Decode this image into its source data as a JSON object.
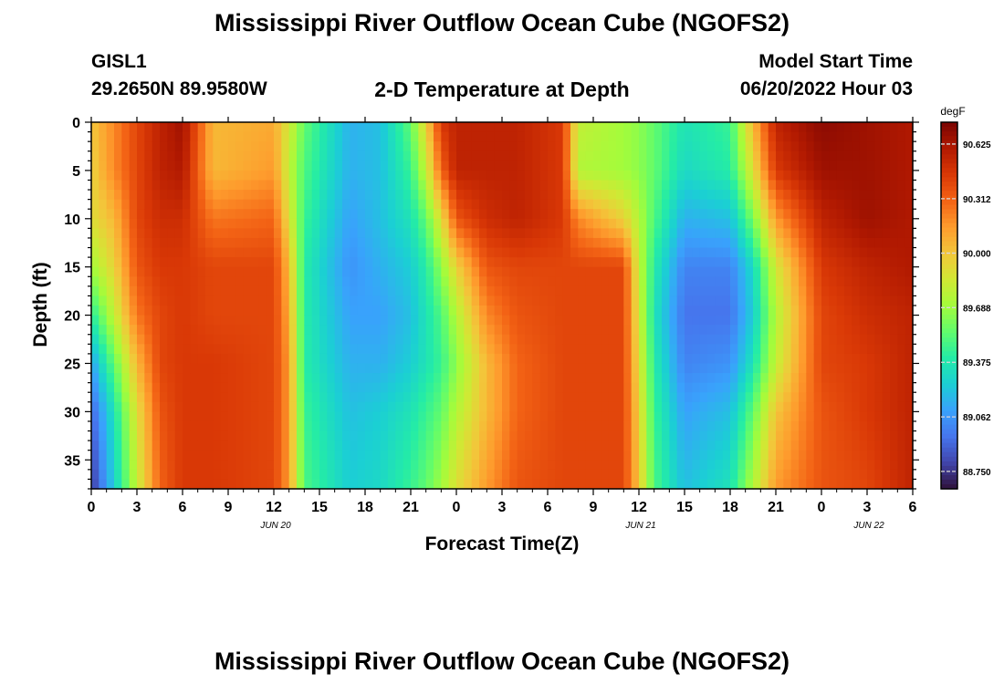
{
  "header": {
    "title": "Mississippi River Outflow Ocean Cube (NGOFS2)",
    "station_id": "GISL1",
    "station_coords": "29.2650N  89.9580W",
    "subtitle": "2-D Temperature at Depth",
    "model_label": "Model Start Time",
    "model_start": "06/20/2022 Hour 03"
  },
  "footer": {
    "title_repeat": "Mississippi River Outflow Ocean Cube (NGOFS2)"
  },
  "chart_data": {
    "type": "heatmap",
    "xlabel": "Forecast Time(Z)",
    "ylabel": "Depth (ft)",
    "y_ticks": [
      0,
      5,
      10,
      15,
      20,
      25,
      30,
      35
    ],
    "y_range": [
      0,
      38
    ],
    "y_inverted": true,
    "x_range_hours": [
      0,
      54
    ],
    "x_tick_labels": [
      "0",
      "3",
      "6",
      "9",
      "12",
      "15",
      "18",
      "21",
      "0",
      "3",
      "6",
      "9",
      "12",
      "15",
      "18",
      "21",
      "0",
      "3",
      "6"
    ],
    "x_date_labels": [
      {
        "label": "JUN 20",
        "at_tick": 4
      },
      {
        "label": "JUN 21",
        "at_tick": 12
      },
      {
        "label": "JUN 22",
        "at_tick": 17
      }
    ],
    "colorbar": {
      "unit": "degF",
      "min": 88.65,
      "max": 90.75,
      "ticks": [
        "90.625",
        "90.312",
        "90.000",
        "89.688",
        "89.375",
        "89.062",
        "88.750"
      ],
      "colors": [
        "#30123b",
        "#4145ab",
        "#4675ed",
        "#39a2fc",
        "#1bcfd4",
        "#24eca6",
        "#61fc6c",
        "#a4fc3b",
        "#d1e834",
        "#f3c63a",
        "#fe9b2d",
        "#f36315",
        "#d93806",
        "#b11901",
        "#7a0402"
      ]
    },
    "profiles_note": "temperature field (degF) by forecast hour and depth",
    "field_keyframes": [
      {
        "t": 0,
        "temps": [
          90.0,
          89.95,
          89.9,
          89.7,
          89.4,
          89.1,
          88.9,
          88.75
        ]
      },
      {
        "t": 1.5,
        "temps": [
          90.2,
          90.2,
          90.05,
          89.95,
          89.8,
          89.55,
          89.35,
          89.25
        ]
      },
      {
        "t": 3,
        "temps": [
          90.4,
          90.4,
          90.4,
          90.35,
          90.25,
          90.05,
          89.9,
          89.8
        ]
      },
      {
        "t": 4.5,
        "temps": [
          90.55,
          90.55,
          90.5,
          90.45,
          90.4,
          90.4,
          90.35,
          90.3
        ]
      },
      {
        "t": 6,
        "temps": [
          90.65,
          90.6,
          90.5,
          90.45,
          90.45,
          90.45,
          90.45,
          90.45
        ]
      },
      {
        "t": 8,
        "temps": [
          90.05,
          90.05,
          90.25,
          90.4,
          90.4,
          90.45,
          90.45,
          90.45
        ]
      },
      {
        "t": 12,
        "temps": [
          90.1,
          90.15,
          90.3,
          90.4,
          90.4,
          90.4,
          90.4,
          90.4
        ]
      },
      {
        "t": 13,
        "temps": [
          89.85,
          89.8,
          89.9,
          90.05,
          90.1,
          90.15,
          90.15,
          90.15
        ]
      },
      {
        "t": 14,
        "temps": [
          89.55,
          89.5,
          89.45,
          89.4,
          89.4,
          89.4,
          89.45,
          89.5
        ]
      },
      {
        "t": 17,
        "temps": [
          89.15,
          89.15,
          89.1,
          89.05,
          89.1,
          89.15,
          89.2,
          89.25
        ]
      },
      {
        "t": 19,
        "temps": [
          89.2,
          89.2,
          89.2,
          89.15,
          89.1,
          89.15,
          89.25,
          89.3
        ]
      },
      {
        "t": 21,
        "temps": [
          89.55,
          89.45,
          89.35,
          89.25,
          89.2,
          89.25,
          89.35,
          89.45
        ]
      },
      {
        "t": 22,
        "temps": [
          89.95,
          89.8,
          89.55,
          89.4,
          89.35,
          89.35,
          89.45,
          89.55
        ]
      },
      {
        "t": 23,
        "temps": [
          90.45,
          90.3,
          89.9,
          89.65,
          89.5,
          89.45,
          89.55,
          89.7
        ]
      },
      {
        "t": 24,
        "temps": [
          90.55,
          90.55,
          90.35,
          89.95,
          89.75,
          89.65,
          89.75,
          89.9
        ]
      },
      {
        "t": 26,
        "temps": [
          90.55,
          90.55,
          90.5,
          90.35,
          90.2,
          90.05,
          90.05,
          90.15
        ]
      },
      {
        "t": 28,
        "temps": [
          90.55,
          90.55,
          90.55,
          90.4,
          90.35,
          90.3,
          90.3,
          90.35
        ]
      },
      {
        "t": 31,
        "temps": [
          90.45,
          90.45,
          90.45,
          90.4,
          90.4,
          90.4,
          90.4,
          90.4
        ]
      },
      {
        "t": 32,
        "temps": [
          89.8,
          89.75,
          90.2,
          90.4,
          90.4,
          90.4,
          90.4,
          90.4
        ]
      },
      {
        "t": 35,
        "temps": [
          89.7,
          89.7,
          89.95,
          90.4,
          90.4,
          90.4,
          90.4,
          90.4
        ]
      },
      {
        "t": 36,
        "temps": [
          89.65,
          89.65,
          89.75,
          89.8,
          89.85,
          89.9,
          89.95,
          90.0
        ]
      },
      {
        "t": 37,
        "temps": [
          89.55,
          89.55,
          89.5,
          89.4,
          89.35,
          89.4,
          89.45,
          89.5
        ]
      },
      {
        "t": 39,
        "temps": [
          89.35,
          89.3,
          89.15,
          89.0,
          88.95,
          89.0,
          89.1,
          89.2
        ]
      },
      {
        "t": 42,
        "temps": [
          89.45,
          89.4,
          89.2,
          89.0,
          88.95,
          89.05,
          89.2,
          89.35
        ]
      },
      {
        "t": 43.5,
        "temps": [
          90.05,
          89.9,
          89.6,
          89.3,
          89.25,
          89.35,
          89.55,
          89.75
        ]
      },
      {
        "t": 45,
        "temps": [
          90.55,
          90.45,
          90.15,
          89.85,
          89.75,
          89.8,
          90.0,
          90.15
        ]
      },
      {
        "t": 48,
        "temps": [
          90.7,
          90.65,
          90.55,
          90.45,
          90.4,
          90.4,
          90.35,
          90.35
        ]
      },
      {
        "t": 51,
        "temps": [
          90.65,
          90.65,
          90.65,
          90.55,
          90.5,
          90.45,
          90.45,
          90.4
        ]
      },
      {
        "t": 54,
        "temps": [
          90.6,
          90.6,
          90.6,
          90.6,
          90.55,
          90.55,
          90.55,
          90.55
        ]
      }
    ],
    "field_depths_ft": [
      0,
      5,
      10,
      15,
      20,
      25,
      30,
      38
    ]
  }
}
